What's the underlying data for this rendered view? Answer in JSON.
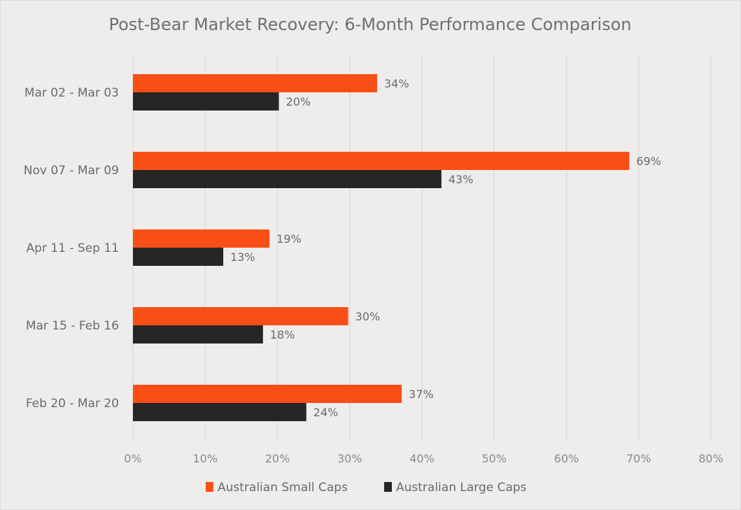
{
  "chart_data": {
    "type": "bar",
    "orientation": "horizontal",
    "title": "Post-Bear Market Recovery: 6-Month Performance Comparison",
    "xlabel": "",
    "ylabel": "",
    "categories": [
      "Mar 02 - Mar 03",
      "Nov 07 - Mar 09",
      "Apr 11 - Sep 11",
      "Mar 15 - Feb 16",
      "Feb 20 - Mar 20"
    ],
    "series": [
      {
        "name": "Australian Small Caps",
        "color": "#f94f16",
        "values": [
          33.8,
          68.7,
          18.9,
          29.8,
          37.2
        ],
        "labels": [
          "34%",
          "69%",
          "19%",
          "30%",
          "37%"
        ]
      },
      {
        "name": "Australian Large Caps",
        "color": "#262626",
        "values": [
          20.2,
          42.7,
          12.5,
          18.0,
          24.0
        ],
        "labels": [
          "20%",
          "43%",
          "13%",
          "18%",
          "24%"
        ]
      }
    ],
    "xlim": [
      0,
      80
    ],
    "xticks": [
      0,
      10,
      20,
      30,
      40,
      50,
      60,
      70,
      80
    ],
    "xtick_labels": [
      "0%",
      "10%",
      "20%",
      "30%",
      "40%",
      "50%",
      "60%",
      "70%",
      "80%"
    ],
    "grid": true,
    "legend": "bottom"
  }
}
